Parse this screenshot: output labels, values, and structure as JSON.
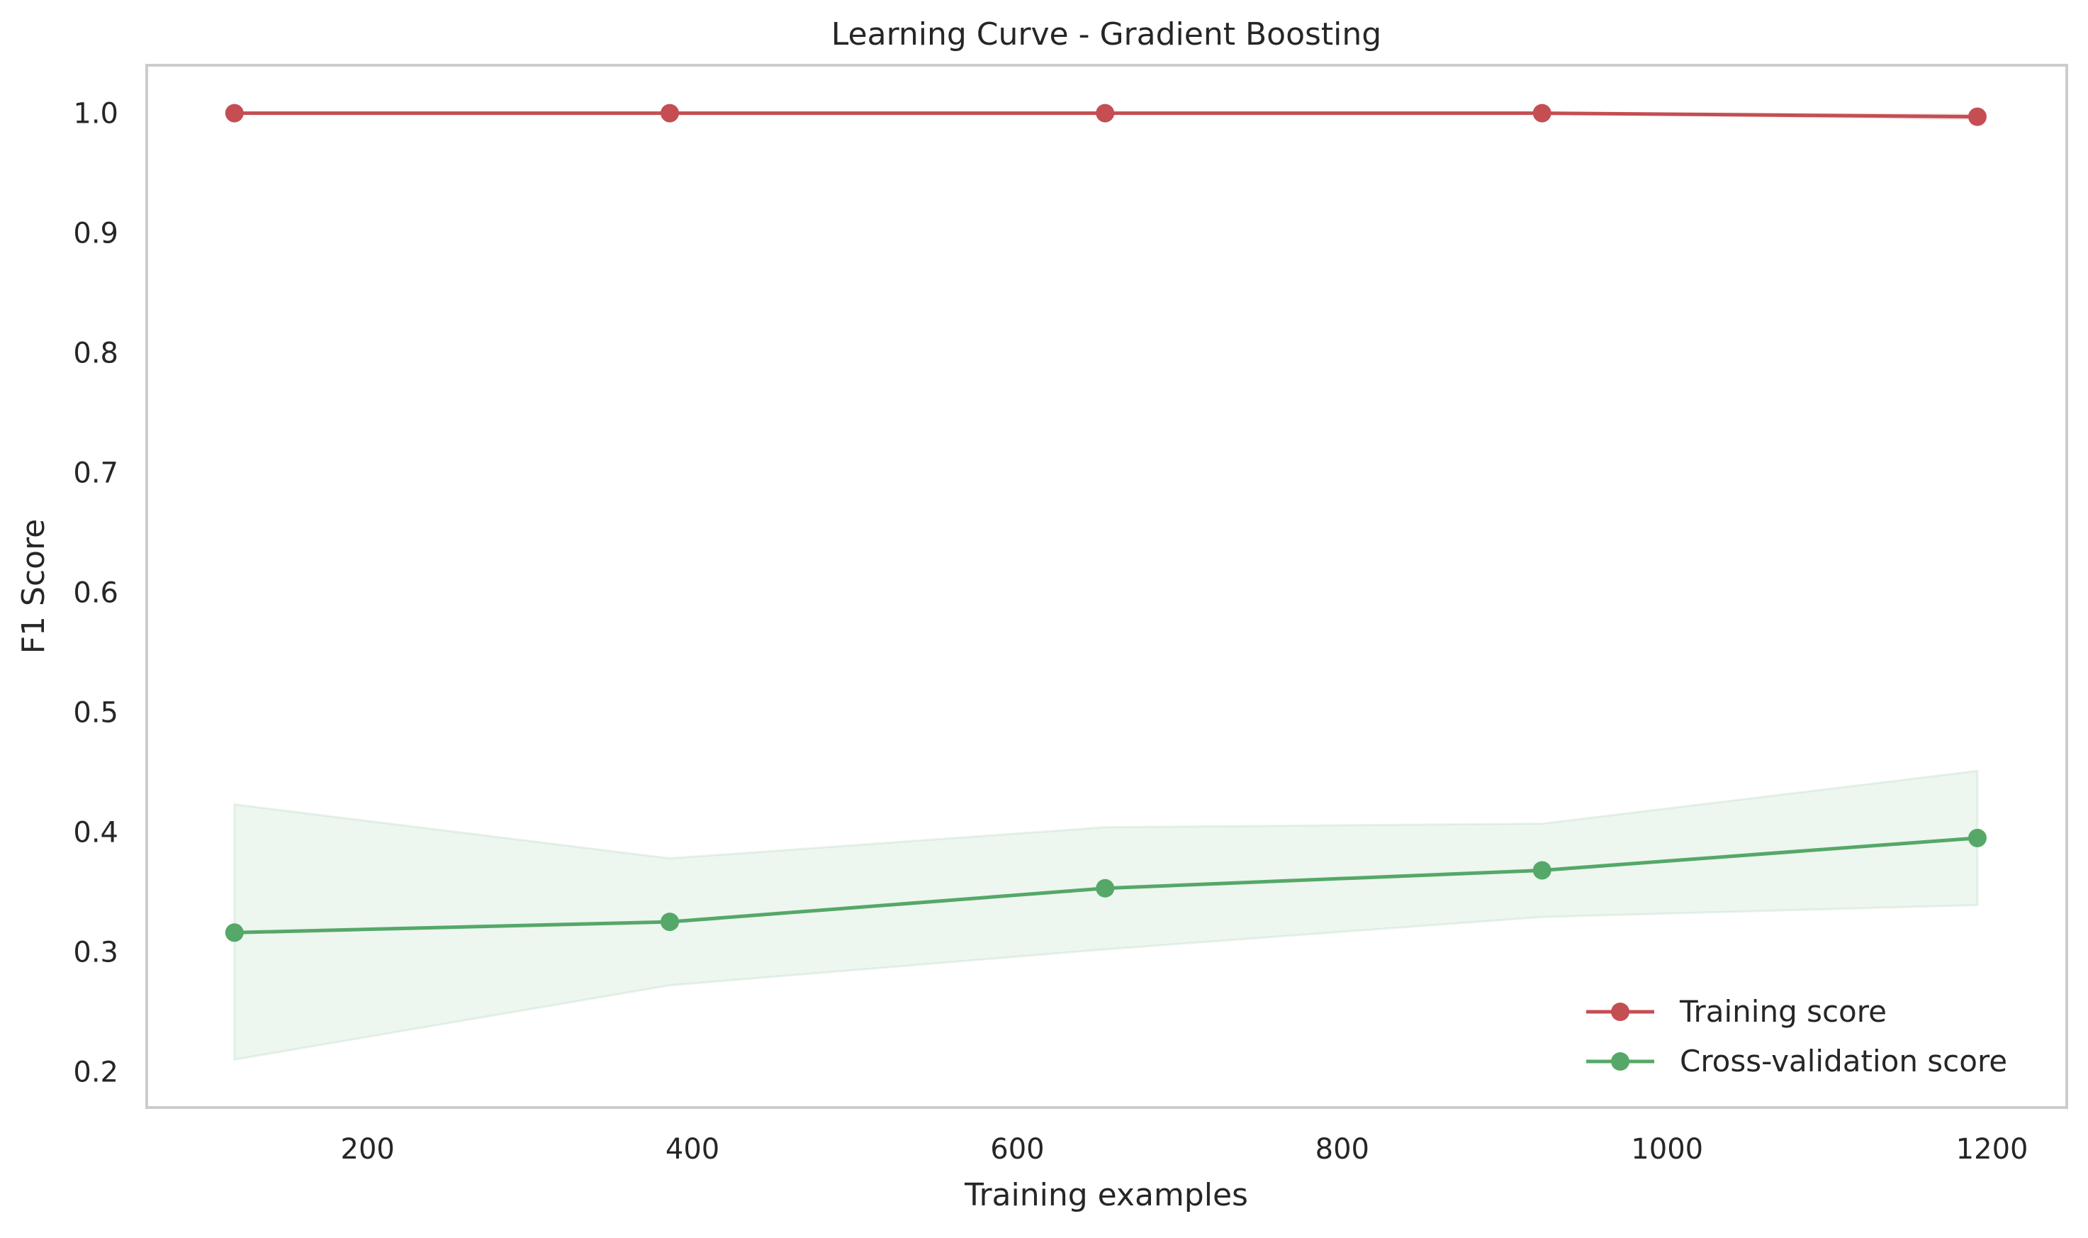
{
  "chart_data": {
    "type": "line",
    "title": "Learning Curve - Gradient Boosting",
    "xlabel": "Training examples",
    "ylabel": "F1 Score",
    "xlim": [
      64,
      1246
    ],
    "ylim": [
      0.17,
      1.04
    ],
    "xticks": [
      200,
      400,
      600,
      800,
      1000,
      1200
    ],
    "yticks": [
      0.2,
      0.3,
      0.4,
      0.5,
      0.6,
      0.7,
      0.8,
      0.9,
      1.0
    ],
    "xtick_labels": [
      "200",
      "400",
      "600",
      "800",
      "1000",
      "1200"
    ],
    "ytick_labels": [
      "0.2",
      "0.3",
      "0.4",
      "0.5",
      "0.6",
      "0.7",
      "0.8",
      "0.9",
      "1.0"
    ],
    "grid": false,
    "legend_position": "lower-right",
    "x": [
      118,
      386,
      654,
      923,
      1191
    ],
    "series": [
      {
        "name": "Training score",
        "color": "#c44e52",
        "values": [
          1.0,
          1.0,
          1.0,
          1.0,
          0.997
        ],
        "band_lower": [
          1.0,
          1.0,
          1.0,
          1.0,
          0.995
        ],
        "band_upper": [
          1.0,
          1.0,
          1.0,
          1.0,
          0.999
        ]
      },
      {
        "name": "Cross-validation score",
        "color": "#55a868",
        "values": [
          0.316,
          0.325,
          0.353,
          0.368,
          0.395
        ],
        "band_lower": [
          0.21,
          0.272,
          0.302,
          0.329,
          0.339
        ],
        "band_upper": [
          0.423,
          0.378,
          0.404,
          0.407,
          0.451
        ]
      }
    ]
  }
}
